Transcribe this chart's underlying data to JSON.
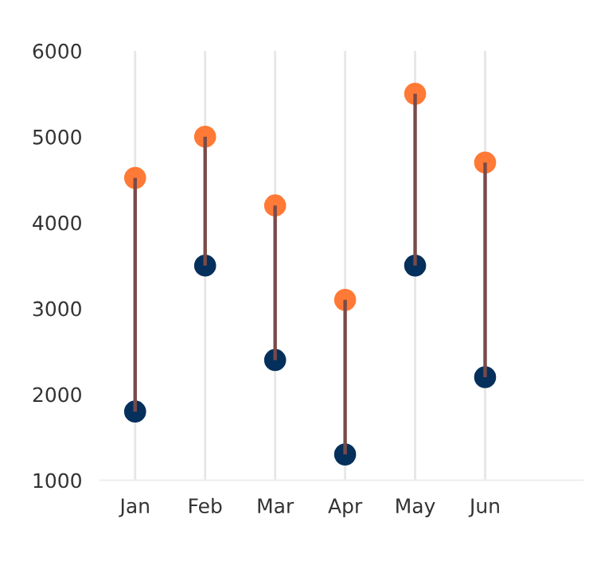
{
  "chart_data": {
    "type": "bar",
    "categories": [
      "Jan",
      "Feb",
      "Mar",
      "Apr",
      "May",
      "Jun"
    ],
    "series": [
      {
        "type": "scatter",
        "color": "#06305c",
        "values": [
          1800,
          3500,
          2400,
          1300,
          3500,
          2200
        ]
      },
      {
        "type": "scatter",
        "color": "#ff7a36",
        "values": [
          4520,
          5000,
          4200,
          3100,
          5500,
          4700
        ]
      },
      {
        "color": "#7a4a48",
        "base": [
          1800,
          3500,
          2400,
          1300,
          3500,
          2200
        ],
        "values": [
          2720,
          1500,
          1800,
          1800,
          2000,
          2500
        ]
      }
    ],
    "ylim": [
      1000,
      6000
    ],
    "yticks": [
      1000,
      2000,
      3000,
      4000,
      5000,
      6000
    ],
    "grid": "x",
    "marker": "circle",
    "legend": false
  }
}
